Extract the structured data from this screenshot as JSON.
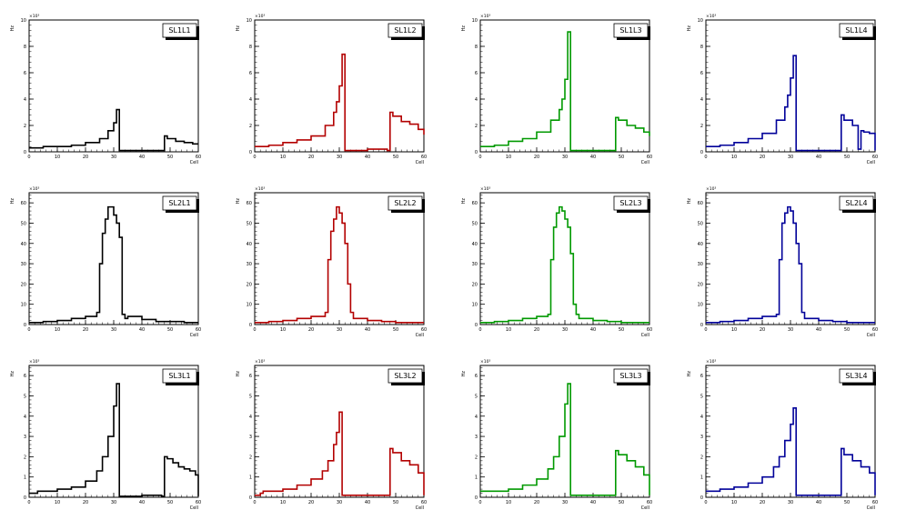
{
  "chart_data": [
    {
      "type": "line",
      "title": "SL1L1",
      "xlabel": "Cell",
      "ylabel": "Hz",
      "multiplier": "×10³",
      "xlim": [
        0,
        60
      ],
      "ylim": [
        0,
        10
      ],
      "yticks": [
        0,
        2,
        4,
        6,
        8,
        10
      ],
      "xticks": [
        0,
        10,
        20,
        30,
        40,
        50,
        60
      ],
      "color": "#000000",
      "x": [
        0,
        5,
        10,
        15,
        20,
        25,
        28,
        30,
        31,
        32,
        33,
        40,
        47,
        48,
        49,
        52,
        55,
        58,
        60
      ],
      "values": [
        0.3,
        0.4,
        0.4,
        0.5,
        0.7,
        1.0,
        1.6,
        2.2,
        3.2,
        0.1,
        0.1,
        0.1,
        0.1,
        1.2,
        1.0,
        0.8,
        0.7,
        0.6,
        0.6
      ]
    },
    {
      "type": "line",
      "title": "SL1L2",
      "xlabel": "Cell",
      "ylabel": "Hz",
      "multiplier": "×10³",
      "xlim": [
        0,
        60
      ],
      "ylim": [
        0,
        10
      ],
      "yticks": [
        0,
        2,
        4,
        6,
        8,
        10
      ],
      "xticks": [
        0,
        10,
        20,
        30,
        40,
        50,
        60
      ],
      "color": "#b30000",
      "x": [
        0,
        5,
        10,
        15,
        20,
        25,
        28,
        29,
        30,
        31,
        32,
        33,
        40,
        47,
        48,
        49,
        52,
        55,
        58,
        60
      ],
      "values": [
        0.4,
        0.5,
        0.7,
        0.9,
        1.2,
        2.0,
        3.0,
        3.8,
        5.0,
        7.4,
        0.1,
        0.1,
        0.2,
        0.1,
        3.0,
        2.7,
        2.3,
        2.1,
        1.7,
        1.3
      ]
    },
    {
      "type": "line",
      "title": "SL1L3",
      "xlabel": "Cell",
      "ylabel": "Hz",
      "multiplier": "×10³",
      "xlim": [
        0,
        60
      ],
      "ylim": [
        0,
        10
      ],
      "yticks": [
        0,
        2,
        4,
        6,
        8,
        10
      ],
      "xticks": [
        0,
        10,
        20,
        30,
        40,
        50,
        60
      ],
      "color": "#009900",
      "x": [
        0,
        5,
        10,
        15,
        20,
        25,
        28,
        29,
        30,
        31,
        32,
        33,
        40,
        47,
        48,
        49,
        52,
        55,
        58,
        60
      ],
      "values": [
        0.4,
        0.5,
        0.8,
        1.0,
        1.5,
        2.4,
        3.2,
        4.0,
        5.5,
        9.1,
        0.1,
        0.1,
        0.1,
        0.1,
        2.6,
        2.4,
        2.0,
        1.8,
        1.5,
        1.2
      ]
    },
    {
      "type": "line",
      "title": "SL1L4",
      "xlabel": "Cell",
      "ylabel": "Hz",
      "multiplier": "×10³",
      "xlim": [
        0,
        60
      ],
      "ylim": [
        0,
        10
      ],
      "yticks": [
        0,
        2,
        4,
        6,
        8,
        10
      ],
      "xticks": [
        0,
        10,
        20,
        30,
        40,
        50,
        60
      ],
      "color": "#000099",
      "x": [
        0,
        5,
        10,
        15,
        20,
        25,
        28,
        29,
        30,
        31,
        32,
        33,
        40,
        47,
        48,
        49,
        52,
        54,
        55,
        56,
        58,
        60
      ],
      "values": [
        0.4,
        0.5,
        0.7,
        1.0,
        1.4,
        2.4,
        3.4,
        4.3,
        5.6,
        7.3,
        0.1,
        0.1,
        0.1,
        0.1,
        2.8,
        2.4,
        2.0,
        0.2,
        1.6,
        1.5,
        1.4,
        0.1
      ]
    },
    {
      "type": "line",
      "title": "SL2L1",
      "xlabel": "Cell",
      "ylabel": "Hz",
      "multiplier": "×10³",
      "xlim": [
        0,
        60
      ],
      "ylim": [
        0,
        65
      ],
      "yticks": [
        0,
        10,
        20,
        30,
        40,
        50,
        60
      ],
      "xticks": [
        0,
        10,
        20,
        30,
        40,
        50,
        60
      ],
      "color": "#000000",
      "x": [
        0,
        5,
        10,
        15,
        20,
        24,
        25,
        26,
        27,
        28,
        29,
        30,
        31,
        32,
        33,
        34,
        35,
        40,
        45,
        50,
        55,
        60
      ],
      "values": [
        1,
        1.5,
        2,
        3,
        4,
        6,
        30,
        45,
        52,
        58,
        58,
        54,
        50,
        43,
        5,
        3,
        4,
        2.5,
        1.5,
        1.5,
        1,
        1
      ]
    },
    {
      "type": "line",
      "title": "SL2L2",
      "xlabel": "Cell",
      "ylabel": "Hz",
      "multiplier": "×10³",
      "xlim": [
        0,
        60
      ],
      "ylim": [
        0,
        65
      ],
      "yticks": [
        0,
        10,
        20,
        30,
        40,
        50,
        60
      ],
      "xticks": [
        0,
        10,
        20,
        30,
        40,
        50,
        60
      ],
      "color": "#b30000",
      "x": [
        0,
        5,
        10,
        15,
        20,
        25,
        26,
        27,
        28,
        29,
        30,
        31,
        32,
        33,
        34,
        35,
        40,
        45,
        50,
        55,
        60
      ],
      "values": [
        1,
        1.5,
        2,
        3,
        4,
        6,
        32,
        46,
        52,
        58,
        55,
        50,
        40,
        20,
        6,
        3,
        2,
        1.5,
        1,
        1,
        1
      ]
    },
    {
      "type": "line",
      "title": "SL2L3",
      "xlabel": "Cell",
      "ylabel": "Hz",
      "multiplier": "×10³",
      "xlim": [
        0,
        60
      ],
      "ylim": [
        0,
        65
      ],
      "yticks": [
        0,
        10,
        20,
        30,
        40,
        50,
        60
      ],
      "xticks": [
        0,
        10,
        20,
        30,
        40,
        50,
        60
      ],
      "color": "#009900",
      "x": [
        0,
        5,
        10,
        15,
        20,
        24,
        25,
        26,
        27,
        28,
        29,
        30,
        31,
        32,
        33,
        34,
        35,
        40,
        45,
        50,
        55,
        60
      ],
      "values": [
        1,
        1.5,
        2,
        3,
        4,
        5,
        32,
        48,
        55,
        58,
        56,
        52,
        48,
        35,
        10,
        5,
        3,
        2,
        1.5,
        1,
        1,
        1
      ]
    },
    {
      "type": "line",
      "title": "SL2L4",
      "xlabel": "Cell",
      "ylabel": "Hz",
      "multiplier": "×10³",
      "xlim": [
        0,
        60
      ],
      "ylim": [
        0,
        65
      ],
      "yticks": [
        0,
        10,
        20,
        30,
        40,
        50,
        60
      ],
      "xticks": [
        0,
        10,
        20,
        30,
        40,
        50,
        60
      ],
      "color": "#000099",
      "x": [
        0,
        5,
        10,
        15,
        20,
        25,
        26,
        27,
        28,
        29,
        30,
        31,
        32,
        33,
        34,
        35,
        40,
        45,
        50,
        55,
        60
      ],
      "values": [
        1,
        1.5,
        2,
        3,
        4,
        5,
        32,
        50,
        55,
        58,
        56,
        50,
        40,
        30,
        6,
        3,
        2,
        1.5,
        1,
        1,
        1
      ]
    },
    {
      "type": "line",
      "title": "SL3L1",
      "xlabel": "Cell",
      "ylabel": "Hz",
      "multiplier": "×10³",
      "xlim": [
        0,
        60
      ],
      "ylim": [
        0,
        6.5
      ],
      "yticks": [
        0,
        1,
        2,
        3,
        4,
        5,
        6
      ],
      "xticks": [
        0,
        10,
        20,
        30,
        40,
        50,
        60
      ],
      "color": "#000000",
      "x": [
        0,
        3,
        6,
        10,
        15,
        20,
        24,
        26,
        28,
        30,
        31,
        32,
        33,
        40,
        47,
        48,
        49,
        51,
        53,
        55,
        57,
        59,
        60
      ],
      "values": [
        0.2,
        0.3,
        0.3,
        0.4,
        0.5,
        0.8,
        1.3,
        2.0,
        3.0,
        4.5,
        5.6,
        0.05,
        0.05,
        0.1,
        0.05,
        2.0,
        1.9,
        1.7,
        1.5,
        1.4,
        1.3,
        1.1,
        0.05
      ]
    },
    {
      "type": "line",
      "title": "SL3L2",
      "xlabel": "Cell",
      "ylabel": "Hz",
      "multiplier": "×10³",
      "xlim": [
        0,
        60
      ],
      "ylim": [
        0,
        6.5
      ],
      "yticks": [
        0,
        1,
        2,
        3,
        4,
        5,
        6
      ],
      "xticks": [
        0,
        10,
        20,
        30,
        40,
        50,
        60
      ],
      "color": "#b30000",
      "x": [
        0,
        2,
        3,
        5,
        10,
        15,
        20,
        24,
        26,
        28,
        29,
        30,
        31,
        32,
        33,
        40,
        47,
        48,
        49,
        52,
        55,
        58,
        60
      ],
      "values": [
        0.1,
        0.2,
        0.3,
        0.3,
        0.4,
        0.6,
        0.9,
        1.3,
        1.8,
        2.6,
        3.2,
        4.2,
        0.1,
        0.1,
        0.1,
        0.1,
        0.1,
        2.4,
        2.2,
        1.8,
        1.6,
        1.2,
        0.1
      ]
    },
    {
      "type": "line",
      "title": "SL3L3",
      "xlabel": "Cell",
      "ylabel": "Hz",
      "multiplier": "×10³",
      "xlim": [
        0,
        60
      ],
      "ylim": [
        0,
        6.5
      ],
      "yticks": [
        0,
        1,
        2,
        3,
        4,
        5,
        6
      ],
      "xticks": [
        0,
        10,
        20,
        30,
        40,
        50,
        60
      ],
      "color": "#009900",
      "x": [
        0,
        5,
        10,
        15,
        20,
        24,
        26,
        28,
        30,
        31,
        32,
        33,
        40,
        47,
        48,
        49,
        52,
        55,
        58,
        60
      ],
      "values": [
        0.3,
        0.3,
        0.4,
        0.6,
        0.9,
        1.4,
        2.0,
        3.0,
        4.6,
        5.6,
        0.1,
        0.1,
        0.1,
        0.1,
        2.3,
        2.1,
        1.8,
        1.5,
        1.1,
        0.1
      ]
    },
    {
      "type": "line",
      "title": "SL3L4",
      "xlabel": "Cell",
      "ylabel": "Hz",
      "multiplier": "×10³",
      "xlim": [
        0,
        60
      ],
      "ylim": [
        0,
        6.5
      ],
      "yticks": [
        0,
        1,
        2,
        3,
        4,
        5,
        6
      ],
      "xticks": [
        0,
        10,
        20,
        30,
        40,
        50,
        60
      ],
      "color": "#000099",
      "x": [
        0,
        5,
        10,
        15,
        20,
        24,
        26,
        28,
        30,
        31,
        32,
        33,
        40,
        47,
        48,
        49,
        52,
        55,
        58,
        60
      ],
      "values": [
        0.3,
        0.4,
        0.5,
        0.7,
        1.0,
        1.5,
        2.0,
        2.8,
        3.6,
        4.4,
        0.1,
        0.1,
        0.1,
        0.1,
        2.4,
        2.1,
        1.8,
        1.5,
        1.2,
        0.1
      ]
    }
  ]
}
